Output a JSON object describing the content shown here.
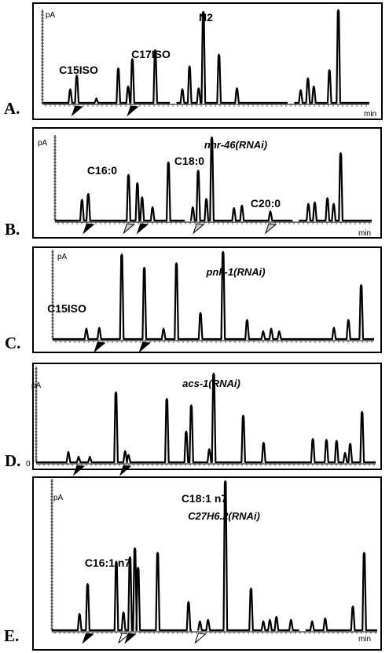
{
  "chart_data": [
    {
      "type": "chromatogram",
      "panel_label": "A.",
      "title": "N2",
      "ylabel": "pA",
      "xlabel": "min",
      "annotations": [
        {
          "text": "C15ISO",
          "at_peak": 2
        },
        {
          "text": "C17ISO",
          "at_peak": 6
        }
      ],
      "peaks": [
        {
          "x": 0.085,
          "h": 0.15
        },
        {
          "x": 0.105,
          "h": 0.3
        },
        {
          "x": 0.165,
          "h": 0.05
        },
        {
          "x": 0.232,
          "h": 0.38
        },
        {
          "x": 0.262,
          "h": 0.18
        },
        {
          "x": 0.275,
          "h": 0.48
        },
        {
          "x": 0.345,
          "h": 0.58
        },
        {
          "x": 0.428,
          "h": 0.15
        },
        {
          "x": 0.45,
          "h": 0.4
        },
        {
          "x": 0.478,
          "h": 0.16
        },
        {
          "x": 0.492,
          "h": 1.0
        },
        {
          "x": 0.54,
          "h": 0.53
        },
        {
          "x": 0.595,
          "h": 0.16
        },
        {
          "x": 0.79,
          "h": 0.14
        },
        {
          "x": 0.812,
          "h": 0.27
        },
        {
          "x": 0.83,
          "h": 0.18
        },
        {
          "x": 0.878,
          "h": 0.36
        },
        {
          "x": 0.905,
          "h": 1.02
        }
      ],
      "gaps": [
        0.4,
        0.76
      ],
      "markers": [
        {
          "x": 0.105,
          "style": "black"
        },
        {
          "x": 0.275,
          "style": "black"
        }
      ]
    },
    {
      "type": "chromatogram",
      "panel_label": "B.",
      "title": "nhr-46(RNAi)",
      "ylabel": "pA",
      "xlabel": "min",
      "annotations": [
        {
          "text": "C16:0",
          "at_peak": 2
        },
        {
          "text": "C18:0",
          "at_peak": 9
        },
        {
          "text": "C20:0",
          "at_peak": 13
        }
      ],
      "peaks": [
        {
          "x": 0.085,
          "h": 0.25
        },
        {
          "x": 0.105,
          "h": 0.32
        },
        {
          "x": 0.232,
          "h": 0.55
        },
        {
          "x": 0.26,
          "h": 0.45
        },
        {
          "x": 0.275,
          "h": 0.28
        },
        {
          "x": 0.308,
          "h": 0.16
        },
        {
          "x": 0.358,
          "h": 0.7
        },
        {
          "x": 0.435,
          "h": 0.16
        },
        {
          "x": 0.452,
          "h": 0.6
        },
        {
          "x": 0.478,
          "h": 0.26
        },
        {
          "x": 0.495,
          "h": 1.0
        },
        {
          "x": 0.565,
          "h": 0.15
        },
        {
          "x": 0.59,
          "h": 0.18
        },
        {
          "x": 0.68,
          "h": 0.11
        },
        {
          "x": 0.8,
          "h": 0.2
        },
        {
          "x": 0.82,
          "h": 0.22
        },
        {
          "x": 0.86,
          "h": 0.27
        },
        {
          "x": 0.88,
          "h": 0.2
        },
        {
          "x": 0.902,
          "h": 0.81
        }
      ],
      "gaps": [
        0.42,
        0.76
      ],
      "markers": [
        {
          "x": 0.105,
          "style": "black"
        },
        {
          "x": 0.232,
          "style": "gray"
        },
        {
          "x": 0.275,
          "style": "black"
        },
        {
          "x": 0.452,
          "style": "gray"
        },
        {
          "x": 0.68,
          "style": "gray"
        }
      ]
    },
    {
      "type": "chromatogram",
      "panel_label": "C.",
      "title": "pnk-1(RNAi)",
      "ylabel": "pA",
      "xlabel": "",
      "annotations": [
        {
          "text": "C15ISO",
          "at_peak": 1
        }
      ],
      "peaks": [
        {
          "x": 0.105,
          "h": 0.12
        },
        {
          "x": 0.145,
          "h": 0.13
        },
        {
          "x": 0.215,
          "h": 0.97
        },
        {
          "x": 0.285,
          "h": 0.82
        },
        {
          "x": 0.345,
          "h": 0.12
        },
        {
          "x": 0.385,
          "h": 0.87
        },
        {
          "x": 0.46,
          "h": 0.3
        },
        {
          "x": 0.53,
          "h": 1.0
        },
        {
          "x": 0.605,
          "h": 0.22
        },
        {
          "x": 0.655,
          "h": 0.09
        },
        {
          "x": 0.68,
          "h": 0.12
        },
        {
          "x": 0.705,
          "h": 0.09
        },
        {
          "x": 0.875,
          "h": 0.13
        },
        {
          "x": 0.92,
          "h": 0.22
        },
        {
          "x": 0.96,
          "h": 0.62
        }
      ],
      "gaps": [],
      "markers": [
        {
          "x": 0.145,
          "style": "black"
        },
        {
          "x": 0.285,
          "style": "black"
        }
      ]
    },
    {
      "type": "chromatogram",
      "panel_label": "D.",
      "title": "acs-1(RNAi)",
      "ylabel": "pA",
      "xlabel": "",
      "y_zero_label": "0",
      "annotations": [],
      "peaks": [
        {
          "x": 0.095,
          "h": 0.11
        },
        {
          "x": 0.125,
          "h": 0.06
        },
        {
          "x": 0.158,
          "h": 0.06
        },
        {
          "x": 0.235,
          "h": 0.75
        },
        {
          "x": 0.262,
          "h": 0.12
        },
        {
          "x": 0.272,
          "h": 0.08
        },
        {
          "x": 0.385,
          "h": 0.68
        },
        {
          "x": 0.442,
          "h": 0.33
        },
        {
          "x": 0.457,
          "h": 0.61
        },
        {
          "x": 0.51,
          "h": 0.14
        },
        {
          "x": 0.523,
          "h": 0.95
        },
        {
          "x": 0.61,
          "h": 0.5
        },
        {
          "x": 0.67,
          "h": 0.21
        },
        {
          "x": 0.815,
          "h": 0.25
        },
        {
          "x": 0.855,
          "h": 0.24
        },
        {
          "x": 0.885,
          "h": 0.23
        },
        {
          "x": 0.91,
          "h": 0.1
        },
        {
          "x": 0.925,
          "h": 0.2
        },
        {
          "x": 0.96,
          "h": 0.54
        }
      ],
      "gaps": [],
      "markers": [
        {
          "x": 0.125,
          "style": "black"
        },
        {
          "x": 0.262,
          "style": "black"
        }
      ]
    },
    {
      "type": "chromatogram",
      "panel_label": "E.",
      "title": "C27H6.2(RNAi)",
      "ylabel": "pA",
      "xlabel": "min",
      "annotations": [
        {
          "text": "C16:1 n7",
          "at_peak": 5
        },
        {
          "text": "C18:1 n7",
          "at_peak": 11
        }
      ],
      "peaks": [
        {
          "x": 0.085,
          "h": 0.11
        },
        {
          "x": 0.11,
          "h": 0.31
        },
        {
          "x": 0.198,
          "h": 0.46
        },
        {
          "x": 0.22,
          "h": 0.12
        },
        {
          "x": 0.24,
          "h": 0.49
        },
        {
          "x": 0.255,
          "h": 0.55
        },
        {
          "x": 0.265,
          "h": 0.42
        },
        {
          "x": 0.325,
          "h": 0.52
        },
        {
          "x": 0.42,
          "h": 0.19
        },
        {
          "x": 0.455,
          "h": 0.06
        },
        {
          "x": 0.48,
          "h": 0.07
        },
        {
          "x": 0.533,
          "h": 1.0
        },
        {
          "x": 0.612,
          "h": 0.28
        },
        {
          "x": 0.65,
          "h": 0.06
        },
        {
          "x": 0.67,
          "h": 0.07
        },
        {
          "x": 0.69,
          "h": 0.09
        },
        {
          "x": 0.735,
          "h": 0.07
        },
        {
          "x": 0.8,
          "h": 0.06
        },
        {
          "x": 0.84,
          "h": 0.08
        },
        {
          "x": 0.925,
          "h": 0.16
        },
        {
          "x": 0.96,
          "h": 0.52
        }
      ],
      "gaps": [
        0.44,
        0.77
      ],
      "markers": [
        {
          "x": 0.11,
          "style": "black"
        },
        {
          "x": 0.22,
          "style": "white"
        },
        {
          "x": 0.24,
          "style": "black"
        },
        {
          "x": 0.455,
          "style": "white"
        }
      ]
    }
  ],
  "colors": {
    "trace": "#000000",
    "frame": "#000000",
    "marker_black": "#000000",
    "marker_gray": "#c8c8c8",
    "marker_white": "#ffffff"
  }
}
